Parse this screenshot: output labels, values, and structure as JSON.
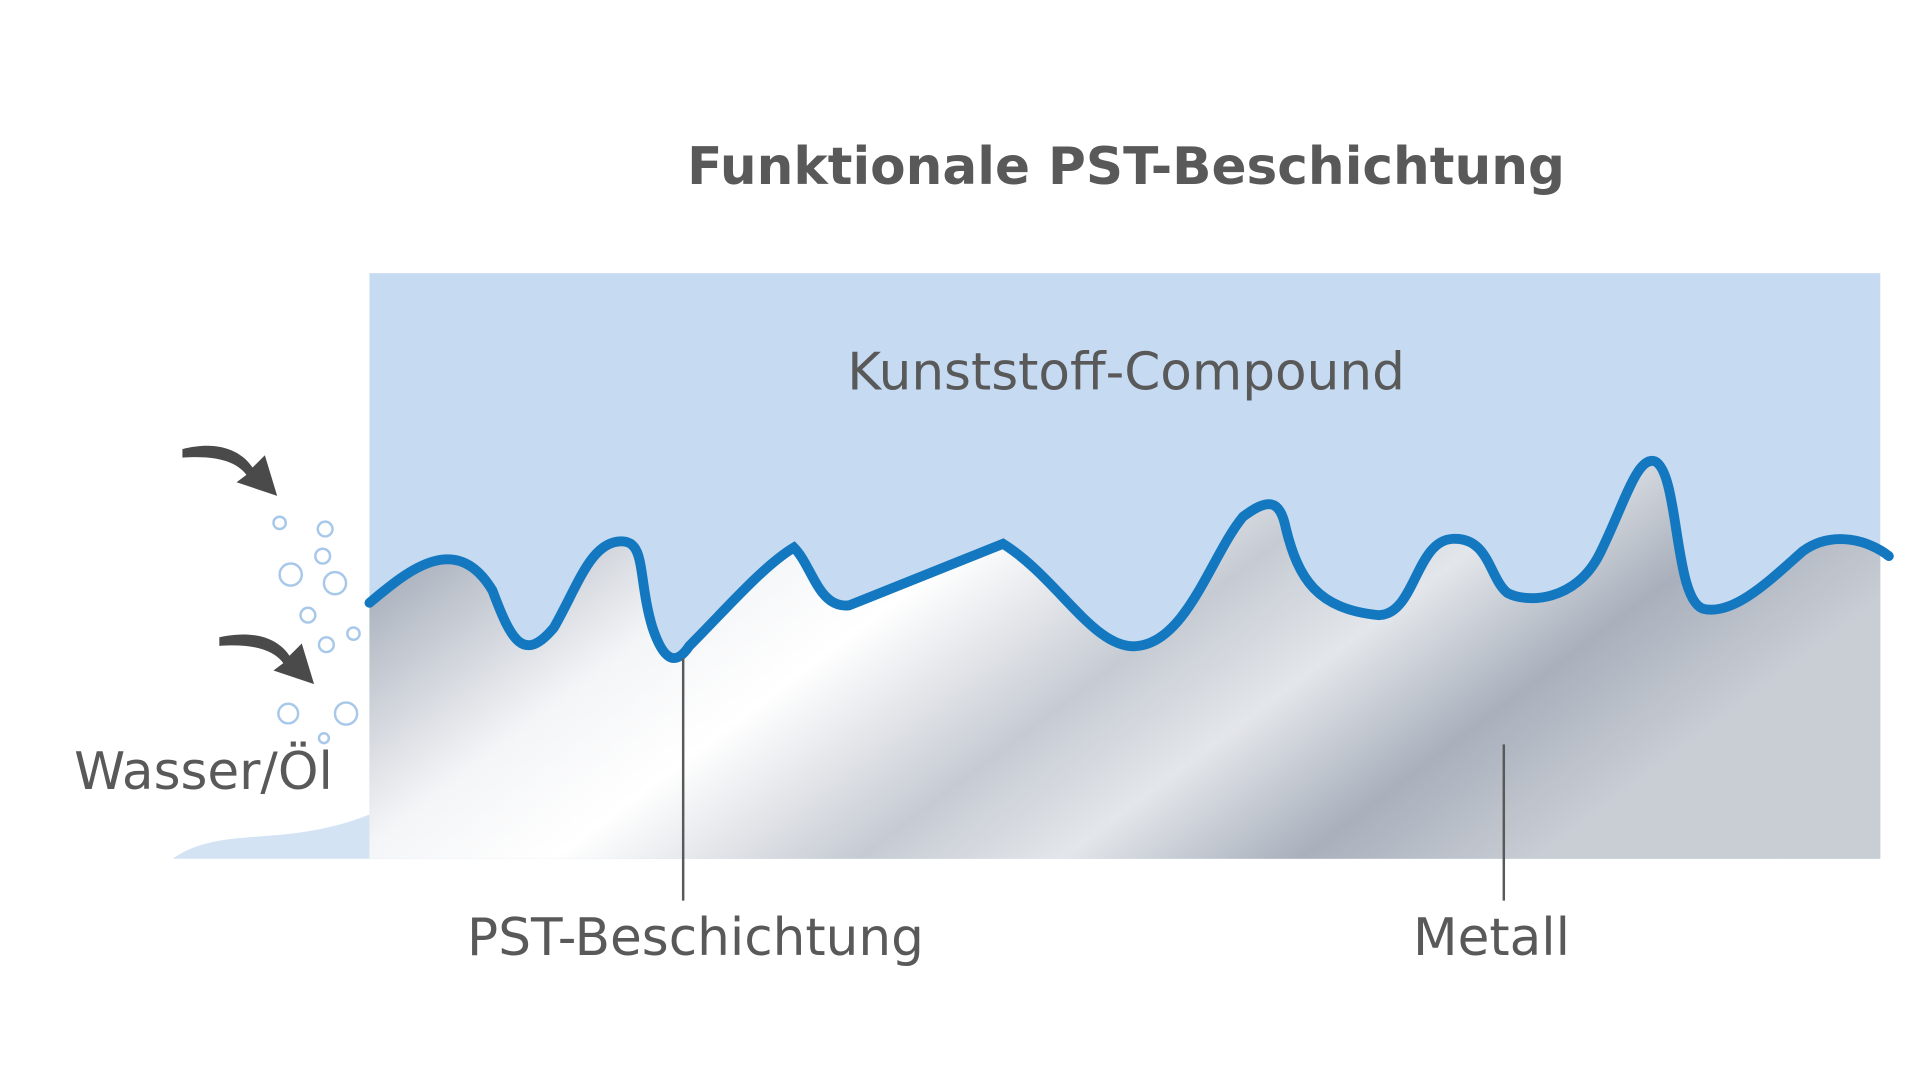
{
  "title": "Funktionale PST-Beschichtung",
  "labels": {
    "compound": "Kunststoff-Compound",
    "water_oil": "Wasser/Öl",
    "coating": "PST-Beschichtung",
    "metal": "Metall"
  }
}
